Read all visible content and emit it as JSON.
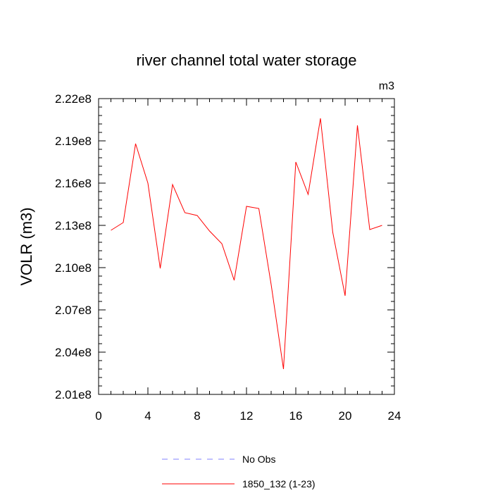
{
  "chart_data": {
    "type": "line",
    "title": "river channel total water storage",
    "units_label": "m3",
    "ylabel": "VOLR  (m3)",
    "xlabel": "",
    "xlim": [
      0,
      24
    ],
    "ylim": [
      201000000,
      222000000
    ],
    "x_major_ticks": [
      0,
      4,
      8,
      12,
      16,
      20,
      24
    ],
    "x_minor_step": 1,
    "y_major_ticks": [
      {
        "value": 201000000,
        "label": "2.01e8"
      },
      {
        "value": 204000000,
        "label": "2.04e8"
      },
      {
        "value": 207000000,
        "label": "2.07e8"
      },
      {
        "value": 210000000,
        "label": "2.10e8"
      },
      {
        "value": 213000000,
        "label": "2.13e8"
      },
      {
        "value": 216000000,
        "label": "2.16e8"
      },
      {
        "value": 219000000,
        "label": "2.19e8"
      },
      {
        "value": 222000000,
        "label": "2.22e8"
      }
    ],
    "y_minor_step": 600000,
    "grid": false,
    "series": [
      {
        "name": "1850_132 (1-23)",
        "color": "#ff0000",
        "x": [
          1,
          2,
          3,
          4,
          5,
          6,
          7,
          8,
          9,
          10,
          11,
          12,
          13,
          14,
          15,
          16,
          17,
          18,
          19,
          20,
          21,
          22,
          23
        ],
        "values": [
          212650000,
          213200000,
          218800000,
          216000000,
          209950000,
          215900000,
          213900000,
          213700000,
          212600000,
          211700000,
          209100000,
          214350000,
          214200000,
          208800000,
          202800000,
          217500000,
          215200000,
          220600000,
          212500000,
          208000000,
          220100000,
          212700000,
          213000000
        ]
      }
    ],
    "legend": {
      "placement": "bottom-center",
      "entries": [
        {
          "label": "No Obs",
          "color": "#8080ff",
          "style": "dashed"
        },
        {
          "label": "1850_132 (1-23)",
          "color": "#ff0000",
          "style": "solid"
        }
      ]
    }
  }
}
